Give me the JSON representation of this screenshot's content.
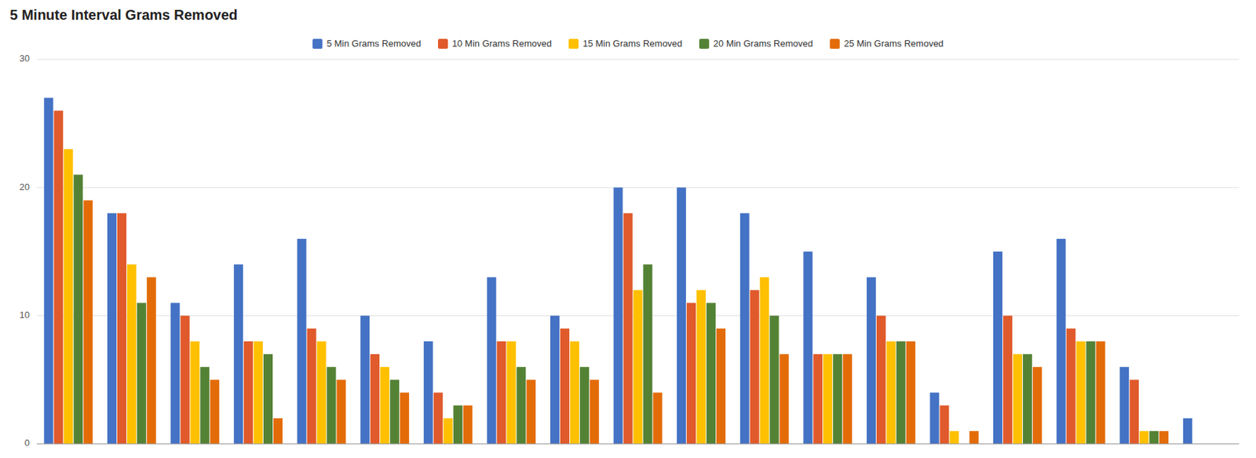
{
  "chart_data": {
    "type": "bar",
    "title": "5 Minute Interval Grams Removed",
    "categories": [
      null,
      null,
      null,
      null,
      null,
      null,
      null,
      null,
      null,
      null,
      null,
      null,
      null,
      null,
      null,
      null,
      null,
      null,
      null
    ],
    "series": [
      {
        "name": "5 Min Grams Removed",
        "color": "#4472c4",
        "values": [
          27,
          18,
          11,
          14,
          16,
          10,
          8,
          13,
          10,
          20,
          20,
          18,
          15,
          13,
          4,
          15,
          16,
          6,
          2
        ]
      },
      {
        "name": "10 Min Grams Removed",
        "color": "#e05a2b",
        "values": [
          26,
          18,
          10,
          8,
          9,
          7,
          4,
          8,
          9,
          18,
          11,
          12,
          7,
          10,
          3,
          10,
          9,
          5,
          0
        ]
      },
      {
        "name": "15 Min Grams Removed",
        "color": "#ffc000",
        "values": [
          23,
          14,
          8,
          8,
          8,
          6,
          2,
          8,
          8,
          12,
          12,
          13,
          7,
          8,
          1,
          7,
          8,
          1,
          0
        ]
      },
      {
        "name": "20 Min Grams Removed",
        "color": "#548235",
        "values": [
          21,
          11,
          6,
          7,
          6,
          5,
          3,
          6,
          6,
          14,
          11,
          10,
          7,
          8,
          0,
          7,
          8,
          1,
          0
        ]
      },
      {
        "name": "25 Min Grams Removed",
        "color": "#e36c09",
        "values": [
          19,
          13,
          5,
          2,
          5,
          4,
          3,
          5,
          5,
          4,
          9,
          7,
          7,
          8,
          1,
          6,
          8,
          1,
          0
        ]
      }
    ],
    "ylim": [
      0,
      30
    ],
    "yticks": [
      0,
      10,
      20,
      30
    ],
    "grid": true,
    "legend": "top",
    "tick_labels": "y"
  }
}
